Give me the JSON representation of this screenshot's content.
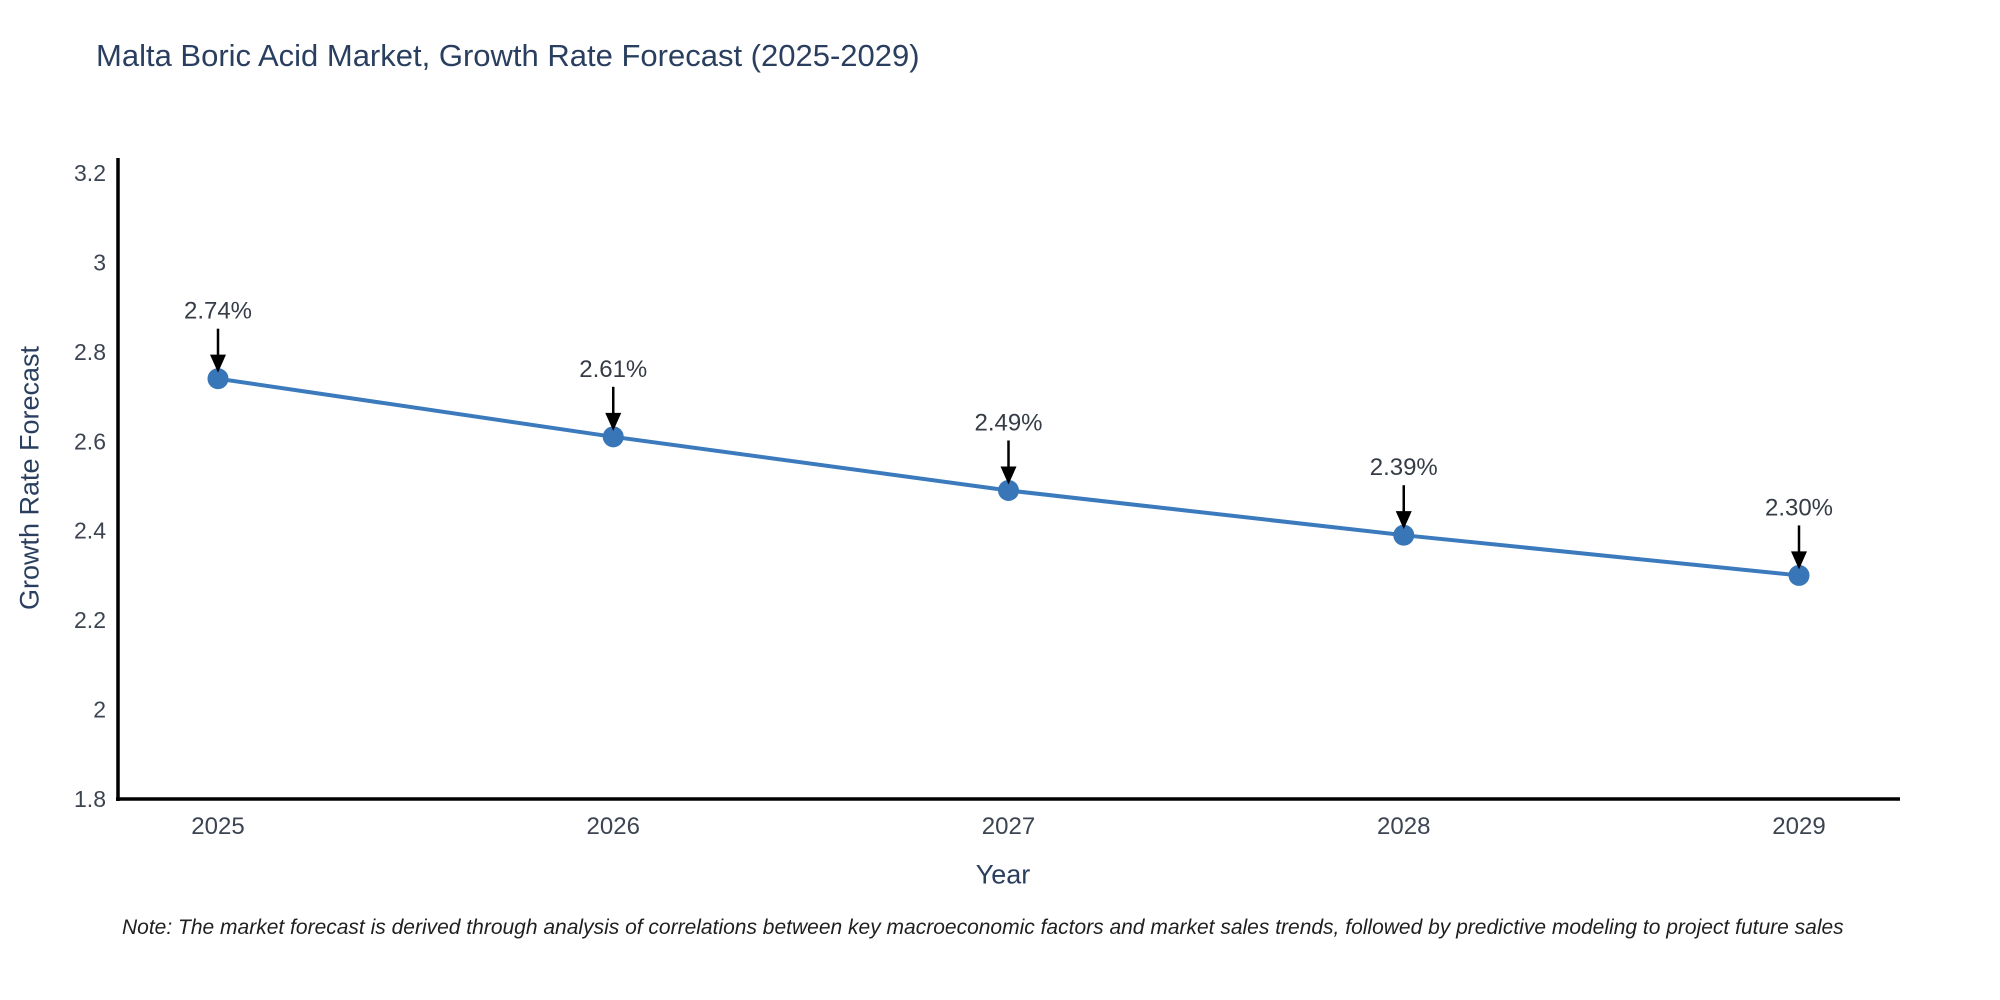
{
  "page": {
    "note": "Note: The market forecast is derived through analysis of correlations between key macroeconomic factors and market sales trends, followed by predictive modeling to project future sales"
  },
  "chart_data": {
    "type": "line",
    "title": "Malta Boric Acid Market, Growth Rate Forecast (2025-2029)",
    "xlabel": "Year",
    "ylabel": "Growth Rate Forecast",
    "categories": [
      "2025",
      "2026",
      "2027",
      "2028",
      "2029"
    ],
    "values": [
      2.74,
      2.61,
      2.49,
      2.39,
      2.3
    ],
    "point_labels": [
      "2.74%",
      "2.61%",
      "2.49%",
      "2.39%",
      "2.30%"
    ],
    "ylim": [
      1.8,
      3.2
    ],
    "yticks": [
      1.8,
      2.0,
      2.2,
      2.4,
      2.6,
      2.8,
      3.0,
      3.2
    ],
    "ytick_labels": [
      "1.8",
      "2",
      "2.2",
      "2.4",
      "2.6",
      "2.8",
      "3",
      "3.2"
    ],
    "grid": false,
    "legend_position": "none",
    "annotations_style": "down-arrow-to-point",
    "colors": {
      "line": "#3b7abd",
      "marker": "#3876b8",
      "axis_line": "#000000",
      "title_text": "#2a3f5f",
      "axis_title_text": "#2a3f5f",
      "tick_text": "#3c4452",
      "annotation_text": "#363c46",
      "note_text": "#1f1f1f",
      "background": "#ffffff"
    }
  }
}
